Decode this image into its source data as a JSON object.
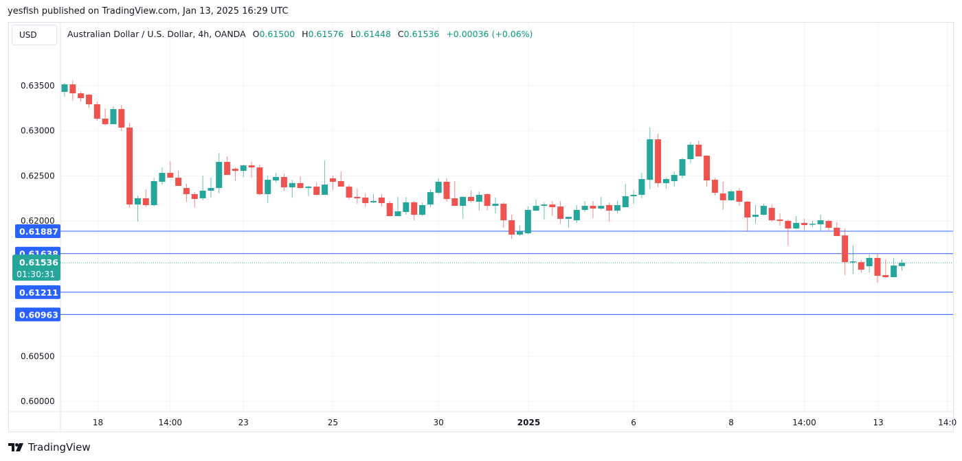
{
  "header": {
    "published": "yesfish published on TradingView.com, Jan 13, 2025 16:29 UTC"
  },
  "currency": "USD",
  "legend": {
    "symbol": "Australian Dollar / U.S. Dollar, 4h, OANDA",
    "o_label": "O",
    "o": "0.61500",
    "h_label": "H",
    "h": "0.61576",
    "l_label": "L",
    "l": "0.61448",
    "c_label": "C",
    "c": "0.61536",
    "change": "+0.00036 (+0.06%)"
  },
  "colors": {
    "up": "#26a69a",
    "down": "#ef5350",
    "level": "#2962ff",
    "current": "#26a69a"
  },
  "price_ticks": [
    "0.63500",
    "0.63000",
    "0.62500",
    "0.62000",
    "0.60500",
    "0.60000"
  ],
  "price_tick_values": [
    0.635,
    0.63,
    0.625,
    0.62,
    0.605,
    0.6
  ],
  "price_range": [
    0.6,
    0.635
  ],
  "levels": [
    {
      "label": "0.61887",
      "value": 0.61887
    },
    {
      "label": "0.61638",
      "value": 0.61638
    },
    {
      "label": "0.61211",
      "value": 0.61211
    },
    {
      "label": "0.60963",
      "value": 0.60963
    }
  ],
  "current": {
    "label": "0.61536",
    "value": 0.61536,
    "countdown": "01:30:31"
  },
  "time_ticks": [
    {
      "label": "18",
      "index": 4.1,
      "bold": false
    },
    {
      "label": "14:00",
      "index": 13.0,
      "bold": false
    },
    {
      "label": "23",
      "index": 22.0,
      "bold": false
    },
    {
      "label": "25",
      "index": 33.0,
      "bold": false
    },
    {
      "label": "30",
      "index": 46.0,
      "bold": false
    },
    {
      "label": "2025",
      "index": 57.1,
      "bold": true
    },
    {
      "label": "6",
      "index": 70.0,
      "bold": false
    },
    {
      "label": "8",
      "index": 82.0,
      "bold": false
    },
    {
      "label": "14:00",
      "index": 91.0,
      "bold": false
    },
    {
      "label": "13",
      "index": 100.1,
      "bold": false
    },
    {
      "label": "14:0",
      "index": 108.6,
      "bold": false
    }
  ],
  "brand": "TradingView",
  "chart_data": {
    "type": "candlestick",
    "title": "Australian Dollar / U.S. Dollar, 4h, OANDA",
    "ylim": [
      0.6,
      0.635
    ],
    "fields": [
      "open",
      "high",
      "low",
      "close"
    ],
    "candles": [
      [
        0.63432,
        0.6353,
        0.63378,
        0.63515
      ],
      [
        0.63515,
        0.63561,
        0.63333,
        0.63416
      ],
      [
        0.63416,
        0.63439,
        0.63325,
        0.63363
      ],
      [
        0.63401,
        0.63409,
        0.63256,
        0.63295
      ],
      [
        0.63295,
        0.63325,
        0.63112,
        0.63135
      ],
      [
        0.63135,
        0.63249,
        0.63059,
        0.63074
      ],
      [
        0.63074,
        0.63272,
        0.63074,
        0.63241
      ],
      [
        0.63241,
        0.63287,
        0.62998,
        0.63036
      ],
      [
        0.63036,
        0.63089,
        0.62145,
        0.62183
      ],
      [
        0.62183,
        0.62282,
        0.61993,
        0.62252
      ],
      [
        0.62252,
        0.62351,
        0.62153,
        0.62176
      ],
      [
        0.62176,
        0.6248,
        0.62161,
        0.62442
      ],
      [
        0.62435,
        0.62594,
        0.62404,
        0.62534
      ],
      [
        0.62534,
        0.62663,
        0.6248,
        0.6248
      ],
      [
        0.6248,
        0.62556,
        0.62389,
        0.62389
      ],
      [
        0.62366,
        0.62412,
        0.62214,
        0.62298
      ],
      [
        0.62298,
        0.6232,
        0.62153,
        0.62244
      ],
      [
        0.62252,
        0.62503,
        0.62229,
        0.62336
      ],
      [
        0.62336,
        0.6248,
        0.62259,
        0.62366
      ],
      [
        0.62366,
        0.62754,
        0.62305,
        0.62655
      ],
      [
        0.62655,
        0.62716,
        0.62511,
        0.62511
      ],
      [
        0.62579,
        0.62594,
        0.6245,
        0.62556
      ],
      [
        0.62556,
        0.62625,
        0.62488,
        0.62617
      ],
      [
        0.62617,
        0.62655,
        0.6248,
        0.62594
      ],
      [
        0.62594,
        0.62625,
        0.62282,
        0.62298
      ],
      [
        0.62298,
        0.62503,
        0.62199,
        0.62457
      ],
      [
        0.6245,
        0.62534,
        0.62427,
        0.62488
      ],
      [
        0.62488,
        0.62526,
        0.62336,
        0.62374
      ],
      [
        0.62374,
        0.62457,
        0.62259,
        0.6242
      ],
      [
        0.6242,
        0.62496,
        0.62359,
        0.62366
      ],
      [
        0.62366,
        0.62389,
        0.62275,
        0.62381
      ],
      [
        0.62381,
        0.62427,
        0.62282,
        0.6229
      ],
      [
        0.6229,
        0.6267,
        0.6229,
        0.62404
      ],
      [
        0.62473,
        0.62503,
        0.62343,
        0.62435
      ],
      [
        0.62442,
        0.62549,
        0.62381,
        0.62381
      ],
      [
        0.62381,
        0.62404,
        0.62237,
        0.6226
      ],
      [
        0.62267,
        0.62359,
        0.62191,
        0.62252
      ],
      [
        0.6226,
        0.62305,
        0.62161,
        0.62199
      ],
      [
        0.62207,
        0.62298,
        0.62199,
        0.62222
      ],
      [
        0.6226,
        0.62298,
        0.62161,
        0.62199
      ],
      [
        0.62199,
        0.62222,
        0.62054,
        0.62054
      ],
      [
        0.62054,
        0.62267,
        0.62054,
        0.62107
      ],
      [
        0.621,
        0.62267,
        0.62069,
        0.62207
      ],
      [
        0.62207,
        0.62222,
        0.62008,
        0.62069
      ],
      [
        0.62069,
        0.62207,
        0.62054,
        0.62176
      ],
      [
        0.62183,
        0.62351,
        0.62153,
        0.6232
      ],
      [
        0.62313,
        0.62473,
        0.62298,
        0.62435
      ],
      [
        0.62435,
        0.62473,
        0.62214,
        0.62244
      ],
      [
        0.62252,
        0.62442,
        0.62168,
        0.62168
      ],
      [
        0.62168,
        0.62275,
        0.62031,
        0.62267
      ],
      [
        0.62267,
        0.62336,
        0.62207,
        0.62222
      ],
      [
        0.62214,
        0.62328,
        0.62115,
        0.6229
      ],
      [
        0.62298,
        0.62305,
        0.62115,
        0.62168
      ],
      [
        0.62168,
        0.6226,
        0.62085,
        0.62191
      ],
      [
        0.62191,
        0.62207,
        0.61925,
        0.62008
      ],
      [
        0.62008,
        0.62069,
        0.618,
        0.61849
      ],
      [
        0.61849,
        0.61948,
        0.61833,
        0.61887
      ],
      [
        0.61864,
        0.62161,
        0.61849,
        0.62123
      ],
      [
        0.62115,
        0.62237,
        0.62107,
        0.62168
      ],
      [
        0.62168,
        0.62207,
        0.62016,
        0.62183
      ],
      [
        0.62183,
        0.62222,
        0.62054,
        0.62153
      ],
      [
        0.62161,
        0.62222,
        0.6197,
        0.62024
      ],
      [
        0.62024,
        0.62039,
        0.61925,
        0.62046
      ],
      [
        0.62008,
        0.62176,
        0.61978,
        0.62123
      ],
      [
        0.62123,
        0.62222,
        0.621,
        0.62168
      ],
      [
        0.62168,
        0.62222,
        0.62031,
        0.62138
      ],
      [
        0.62138,
        0.62267,
        0.62123,
        0.62168
      ],
      [
        0.62176,
        0.62207,
        0.61993,
        0.62115
      ],
      [
        0.62115,
        0.62222,
        0.62085,
        0.62176
      ],
      [
        0.62153,
        0.62412,
        0.62153,
        0.62275
      ],
      [
        0.62275,
        0.62343,
        0.62191,
        0.6229
      ],
      [
        0.6229,
        0.62534,
        0.62252,
        0.62465
      ],
      [
        0.62457,
        0.63036,
        0.62351,
        0.62906
      ],
      [
        0.62906,
        0.62967,
        0.62374,
        0.6242
      ],
      [
        0.6242,
        0.6248,
        0.62359,
        0.62465
      ],
      [
        0.62442,
        0.62549,
        0.62381,
        0.62511
      ],
      [
        0.62503,
        0.62701,
        0.62473,
        0.62686
      ],
      [
        0.62686,
        0.62876,
        0.6264,
        0.62846
      ],
      [
        0.62846,
        0.62891,
        0.62716,
        0.62716
      ],
      [
        0.62724,
        0.62731,
        0.62381,
        0.6245
      ],
      [
        0.62457,
        0.6248,
        0.62282,
        0.62313
      ],
      [
        0.62305,
        0.62435,
        0.62123,
        0.6223
      ],
      [
        0.6223,
        0.62343,
        0.62222,
        0.62328
      ],
      [
        0.62336,
        0.62366,
        0.62168,
        0.62214
      ],
      [
        0.62214,
        0.62222,
        0.61879,
        0.62039
      ],
      [
        0.62046,
        0.62176,
        0.6197,
        0.62069
      ],
      [
        0.62069,
        0.62191,
        0.62062,
        0.62168
      ],
      [
        0.62145,
        0.62183,
        0.61993,
        0.62008
      ],
      [
        0.62016,
        0.62085,
        0.61948,
        0.62001
      ],
      [
        0.62001,
        0.62016,
        0.61727,
        0.61917
      ],
      [
        0.61917,
        0.62054,
        0.6191,
        0.61978
      ],
      [
        0.61978,
        0.62024,
        0.61902,
        0.61955
      ],
      [
        0.61963,
        0.62001,
        0.61933,
        0.6197
      ],
      [
        0.61963,
        0.62069,
        0.61894,
        0.62008
      ],
      [
        0.62001,
        0.62016,
        0.61894,
        0.61925
      ],
      [
        0.61925,
        0.61986,
        0.61833,
        0.61833
      ],
      [
        0.6184,
        0.61917,
        0.61399,
        0.61544
      ],
      [
        0.61544,
        0.61727,
        0.61415,
        0.61552
      ],
      [
        0.61544,
        0.61567,
        0.6143,
        0.6146
      ],
      [
        0.61498,
        0.61628,
        0.6143,
        0.6159
      ],
      [
        0.6159,
        0.61636,
        0.61316,
        0.61392
      ],
      [
        0.614,
        0.61575,
        0.61369,
        0.61377
      ],
      [
        0.61377,
        0.6159,
        0.61377,
        0.61506
      ],
      [
        0.615,
        0.61576,
        0.61448,
        0.61536
      ]
    ]
  }
}
